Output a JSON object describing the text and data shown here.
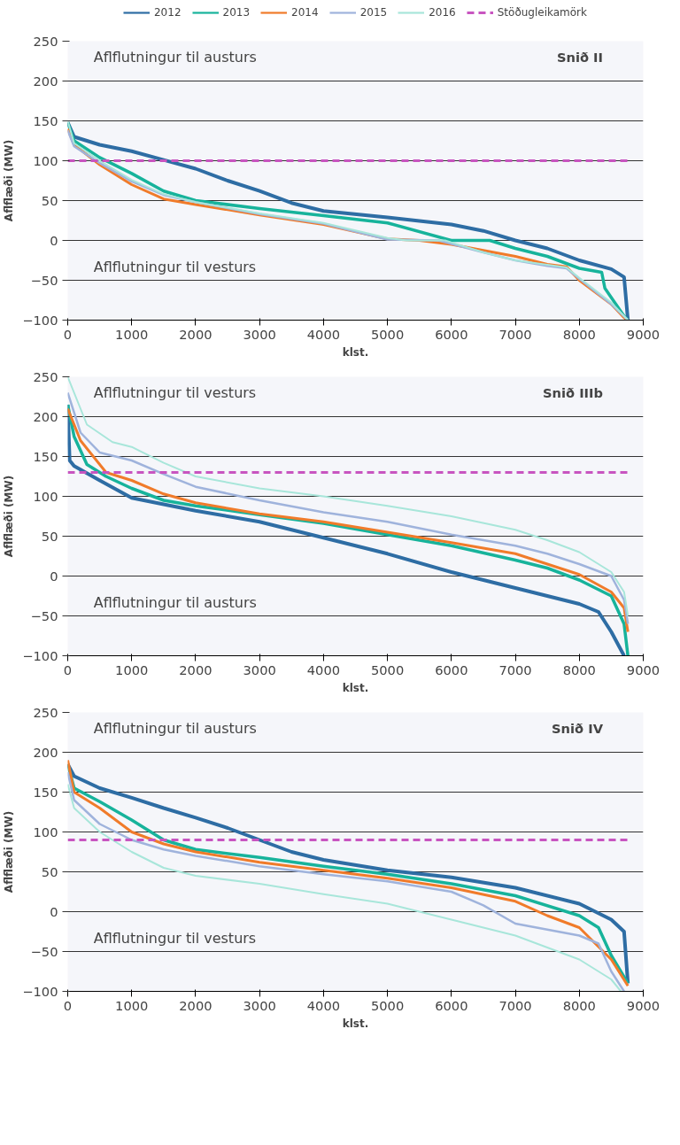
{
  "chart_data": [
    {
      "type": "line",
      "title": "Snið II",
      "xlabel": "klst.",
      "ylabel": "Aflflæði (MW)",
      "annotations": [
        "Aflflutningur til austurs",
        "Aflflutningur til vesturs"
      ],
      "xlim": [
        0,
        9000
      ],
      "ylim": [
        -100,
        250
      ],
      "xticks": [
        0,
        1000,
        2000,
        3000,
        4000,
        5000,
        6000,
        7000,
        8000,
        9000
      ],
      "yticks": [
        -100,
        -50,
        0,
        50,
        100,
        150,
        200,
        250
      ],
      "grid": "y",
      "legend": "top",
      "line_style": "solid",
      "ref_lines": [
        {
          "axis": "y",
          "value": 100,
          "label": "Stöðugleikamörk",
          "color": "#c855c0",
          "line_style": "dashed"
        }
      ],
      "series": [
        {
          "name": "2012",
          "color": "#2e6da4",
          "x": [
            0,
            100,
            500,
            1000,
            1500,
            2000,
            2500,
            3000,
            3500,
            4000,
            5000,
            6000,
            6500,
            7000,
            7500,
            8000,
            8500,
            8700,
            8760
          ],
          "values": [
            148,
            130,
            120,
            112,
            101,
            90,
            75,
            62,
            47,
            37,
            29,
            20,
            12,
            0,
            -10,
            -25,
            -36,
            -46,
            -100
          ]
        },
        {
          "name": "2013",
          "color": "#17b39b",
          "x": [
            0,
            100,
            500,
            1000,
            1500,
            2000,
            3000,
            4000,
            5000,
            6000,
            6600,
            7000,
            7500,
            8000,
            8350,
            8400,
            8700,
            8760
          ],
          "values": [
            148,
            125,
            104,
            84,
            62,
            50,
            40,
            31,
            22,
            0,
            0,
            -10,
            -20,
            -35,
            -40,
            -60,
            -95,
            -100
          ]
        },
        {
          "name": "2014",
          "color": "#f07b2a",
          "x": [
            0,
            100,
            500,
            1000,
            1500,
            2000,
            3000,
            4000,
            5000,
            5500,
            6000,
            7000,
            7500,
            7800,
            8000,
            8500,
            8700,
            8760
          ],
          "values": [
            140,
            120,
            95,
            70,
            52,
            45,
            32,
            20,
            2,
            0,
            -5,
            -20,
            -30,
            -33,
            -50,
            -80,
            -97,
            -100
          ]
        },
        {
          "name": "2015",
          "color": "#9fb3dc",
          "x": [
            0,
            100,
            500,
            1000,
            1500,
            2000,
            3000,
            4000,
            5000,
            5800,
            6500,
            7000,
            7500,
            7800,
            8000,
            8500,
            8760
          ],
          "values": [
            138,
            118,
            97,
            74,
            57,
            48,
            33,
            21,
            1,
            0,
            -15,
            -25,
            -32,
            -35,
            -48,
            -80,
            -100
          ]
        },
        {
          "name": "2016",
          "color": "#a8e6da",
          "x": [
            0,
            100,
            500,
            1000,
            1500,
            2000,
            3000,
            4000,
            5000,
            5300,
            5900,
            6500,
            7000,
            7800,
            8000,
            8500,
            8760
          ],
          "values": [
            150,
            122,
            100,
            76,
            58,
            48,
            34,
            22,
            3,
            0,
            0,
            -15,
            -25,
            -34,
            -47,
            -78,
            -100
          ]
        }
      ]
    },
    {
      "type": "line",
      "title": "Snið IIIb",
      "xlabel": "klst.",
      "ylabel": "Aflflæði (MW)",
      "annotations": [
        "Aflflutningur til vesturs",
        "Aflflutningur til austurs"
      ],
      "xlim": [
        0,
        9000
      ],
      "ylim": [
        -100,
        250
      ],
      "xticks": [
        0,
        1000,
        2000,
        3000,
        4000,
        5000,
        6000,
        7000,
        8000,
        9000
      ],
      "yticks": [
        -100,
        -50,
        0,
        50,
        100,
        150,
        200,
        250
      ],
      "grid": "y",
      "line_style": "solid",
      "ref_lines": [
        {
          "axis": "y",
          "value": 130,
          "color": "#c855c0",
          "line_style": "dashed"
        }
      ],
      "series": [
        {
          "color": "#2e6da4",
          "x": [
            0,
            30,
            100,
            500,
            1000,
            2000,
            3000,
            4000,
            5000,
            6000,
            7000,
            8000,
            8300,
            8500,
            8700
          ],
          "values": [
            215,
            145,
            138,
            120,
            98,
            82,
            68,
            48,
            28,
            5,
            -15,
            -35,
            -45,
            -70,
            -100
          ]
        },
        {
          "color": "#17b39b",
          "x": [
            0,
            100,
            300,
            600,
            1000,
            1500,
            2000,
            3000,
            4000,
            5000,
            6000,
            7000,
            7500,
            8000,
            8500,
            8700,
            8760
          ],
          "values": [
            215,
            175,
            140,
            125,
            110,
            95,
            88,
            77,
            66,
            52,
            38,
            20,
            10,
            -5,
            -25,
            -60,
            -100
          ]
        },
        {
          "color": "#f07b2a",
          "x": [
            0,
            200,
            600,
            1000,
            1500,
            2000,
            3000,
            4000,
            5000,
            6000,
            7000,
            7500,
            8000,
            8500,
            8700,
            8760
          ],
          "values": [
            210,
            170,
            130,
            120,
            103,
            92,
            78,
            68,
            55,
            42,
            28,
            15,
            2,
            -20,
            -40,
            -70
          ]
        },
        {
          "color": "#9fb3dc",
          "x": [
            0,
            200,
            500,
            1000,
            1500,
            2000,
            3000,
            4000,
            5000,
            6000,
            7000,
            7500,
            8000,
            8500,
            8700,
            8760
          ],
          "values": [
            230,
            180,
            155,
            145,
            128,
            112,
            95,
            80,
            68,
            52,
            38,
            28,
            15,
            0,
            -30,
            -60
          ]
        },
        {
          "color": "#a8e6da",
          "x": [
            0,
            300,
            700,
            1000,
            1500,
            2000,
            3000,
            4000,
            5000,
            6000,
            7000,
            7500,
            8000,
            8500,
            8700,
            8760
          ],
          "values": [
            250,
            190,
            168,
            162,
            142,
            125,
            110,
            100,
            88,
            75,
            58,
            45,
            30,
            5,
            -20,
            -50
          ]
        }
      ]
    },
    {
      "type": "line",
      "title": "Snið IV",
      "xlabel": "klst.",
      "ylabel": "Aflflæði (MW)",
      "annotations": [
        "Aflflutningur til austurs",
        "Aflflutningur til vesturs"
      ],
      "xlim": [
        0,
        9000
      ],
      "ylim": [
        -100,
        250
      ],
      "xticks": [
        0,
        1000,
        2000,
        3000,
        4000,
        5000,
        6000,
        7000,
        8000,
        9000
      ],
      "yticks": [
        -100,
        -50,
        0,
        50,
        100,
        150,
        200,
        250
      ],
      "grid": "y",
      "line_style": "solid",
      "ref_lines": [
        {
          "axis": "y",
          "value": 90,
          "color": "#c855c0",
          "line_style": "dashed"
        }
      ],
      "series": [
        {
          "color": "#2e6da4",
          "x": [
            0,
            100,
            500,
            1000,
            1500,
            2000,
            2500,
            3000,
            3500,
            4000,
            5000,
            6000,
            7000,
            8000,
            8500,
            8700,
            8760
          ],
          "values": [
            185,
            170,
            155,
            143,
            130,
            118,
            105,
            90,
            75,
            65,
            52,
            43,
            30,
            10,
            -10,
            -25,
            -90
          ]
        },
        {
          "color": "#17b39b",
          "x": [
            0,
            100,
            500,
            1000,
            1500,
            2000,
            3000,
            4000,
            5000,
            6000,
            7000,
            8000,
            8300,
            8500,
            8760
          ],
          "values": [
            185,
            155,
            138,
            115,
            90,
            78,
            68,
            57,
            47,
            35,
            20,
            -5,
            -20,
            -55,
            -90
          ]
        },
        {
          "color": "#f07b2a",
          "x": [
            0,
            100,
            500,
            1000,
            1500,
            2000,
            3000,
            4000,
            5000,
            6000,
            7000,
            7500,
            8000,
            8500,
            8760
          ],
          "values": [
            190,
            150,
            130,
            100,
            85,
            75,
            62,
            52,
            42,
            30,
            13,
            -5,
            -20,
            -60,
            -93
          ]
        },
        {
          "color": "#9fb3dc",
          "x": [
            0,
            100,
            500,
            1000,
            1500,
            2000,
            3000,
            4000,
            5000,
            6000,
            6500,
            7000,
            8000,
            8300,
            8500,
            8700
          ],
          "values": [
            175,
            140,
            110,
            90,
            78,
            70,
            57,
            47,
            38,
            25,
            8,
            -15,
            -30,
            -40,
            -75,
            -100
          ]
        },
        {
          "color": "#a8e6da",
          "x": [
            0,
            100,
            500,
            1000,
            1500,
            2000,
            3000,
            4000,
            5000,
            5500,
            6000,
            7000,
            7500,
            8000,
            8500,
            8650
          ],
          "values": [
            160,
            130,
            100,
            75,
            55,
            45,
            35,
            22,
            10,
            0,
            -10,
            -30,
            -45,
            -60,
            -85,
            -100
          ]
        }
      ]
    }
  ]
}
